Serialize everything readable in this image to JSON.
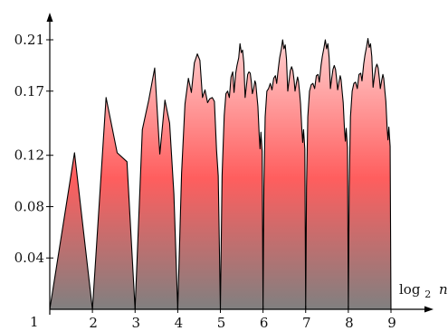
{
  "chart_data": {
    "type": "area",
    "xlabel": "log",
    "xlabel_sub": "2",
    "xlabel_var": "n",
    "origin_label": "1",
    "x_ticks": [
      2,
      3,
      4,
      5,
      6,
      7,
      8,
      9
    ],
    "y_ticks": [
      0.04,
      0.08,
      0.12,
      0.17,
      0.21
    ],
    "y_tick_labels": [
      "0.04",
      "0.08",
      "0.12",
      "0.17",
      "0.21"
    ],
    "x_tick_labels": [
      "2",
      "3",
      "4",
      "5",
      "6",
      "7",
      "8",
      "9"
    ],
    "xlim": [
      1,
      9.45
    ],
    "ylim": [
      0,
      0.225
    ],
    "grid": false,
    "legend": "none",
    "colors": {
      "top": "#ffd3d3",
      "middle": "#ff5e5e",
      "bottom": "#808080",
      "outline": "#000000"
    },
    "points": [
      [
        1.0,
        0.0
      ],
      [
        1.58,
        0.122
      ],
      [
        2.0,
        0.0
      ],
      [
        2.32,
        0.165
      ],
      [
        2.58,
        0.122
      ],
      [
        2.81,
        0.115
      ],
      [
        3.0,
        0.0
      ],
      [
        3.17,
        0.14
      ],
      [
        3.32,
        0.163
      ],
      [
        3.46,
        0.188
      ],
      [
        3.58,
        0.121
      ],
      [
        3.7,
        0.163
      ],
      [
        3.81,
        0.145
      ],
      [
        3.91,
        0.09
      ],
      [
        4.0,
        0.0
      ],
      [
        4.09,
        0.106
      ],
      [
        4.17,
        0.16
      ],
      [
        4.25,
        0.18
      ],
      [
        4.32,
        0.169
      ],
      [
        4.39,
        0.192
      ],
      [
        4.46,
        0.199
      ],
      [
        4.52,
        0.194
      ],
      [
        4.58,
        0.165
      ],
      [
        4.64,
        0.171
      ],
      [
        4.7,
        0.161
      ],
      [
        4.75,
        0.164
      ],
      [
        4.81,
        0.165
      ],
      [
        4.86,
        0.162
      ],
      [
        4.91,
        0.124
      ],
      [
        4.95,
        0.104
      ],
      [
        5.0,
        0.0
      ],
      [
        5.04,
        0.104
      ],
      [
        5.09,
        0.151
      ],
      [
        5.13,
        0.168
      ],
      [
        5.17,
        0.17
      ],
      [
        5.21,
        0.165
      ],
      [
        5.25,
        0.181
      ],
      [
        5.29,
        0.185
      ],
      [
        5.32,
        0.169
      ],
      [
        5.36,
        0.184
      ],
      [
        5.39,
        0.19
      ],
      [
        5.43,
        0.196
      ],
      [
        5.46,
        0.207
      ],
      [
        5.49,
        0.2
      ],
      [
        5.52,
        0.202
      ],
      [
        5.55,
        0.192
      ],
      [
        5.58,
        0.165
      ],
      [
        5.61,
        0.174
      ],
      [
        5.64,
        0.183
      ],
      [
        5.67,
        0.185
      ],
      [
        5.7,
        0.184
      ],
      [
        5.73,
        0.176
      ],
      [
        5.75,
        0.168
      ],
      [
        5.78,
        0.172
      ],
      [
        5.81,
        0.178
      ],
      [
        5.83,
        0.176
      ],
      [
        5.86,
        0.165
      ],
      [
        5.88,
        0.158
      ],
      [
        5.91,
        0.136
      ],
      [
        5.93,
        0.125
      ],
      [
        5.95,
        0.138
      ],
      [
        5.98,
        0.123
      ],
      [
        6.0,
        0.0
      ],
      [
        6.02,
        0.095
      ],
      [
        6.05,
        0.15
      ],
      [
        6.09,
        0.17
      ],
      [
        6.13,
        0.172
      ],
      [
        6.17,
        0.176
      ],
      [
        6.21,
        0.171
      ],
      [
        6.25,
        0.18
      ],
      [
        6.29,
        0.182
      ],
      [
        6.32,
        0.176
      ],
      [
        6.36,
        0.188
      ],
      [
        6.39,
        0.196
      ],
      [
        6.43,
        0.203
      ],
      [
        6.46,
        0.21
      ],
      [
        6.49,
        0.203
      ],
      [
        6.52,
        0.206
      ],
      [
        6.55,
        0.195
      ],
      [
        6.58,
        0.17
      ],
      [
        6.61,
        0.178
      ],
      [
        6.64,
        0.186
      ],
      [
        6.67,
        0.189
      ],
      [
        6.7,
        0.186
      ],
      [
        6.73,
        0.178
      ],
      [
        6.75,
        0.17
      ],
      [
        6.78,
        0.176
      ],
      [
        6.81,
        0.181
      ],
      [
        6.83,
        0.178
      ],
      [
        6.86,
        0.168
      ],
      [
        6.88,
        0.16
      ],
      [
        6.91,
        0.14
      ],
      [
        6.93,
        0.13
      ],
      [
        6.95,
        0.14
      ],
      [
        6.98,
        0.125
      ],
      [
        7.0,
        0.0
      ],
      [
        7.02,
        0.095
      ],
      [
        7.05,
        0.15
      ],
      [
        7.09,
        0.17
      ],
      [
        7.13,
        0.175
      ],
      [
        7.17,
        0.176
      ],
      [
        7.21,
        0.172
      ],
      [
        7.25,
        0.182
      ],
      [
        7.29,
        0.183
      ],
      [
        7.32,
        0.177
      ],
      [
        7.36,
        0.19
      ],
      [
        7.39,
        0.197
      ],
      [
        7.43,
        0.204
      ],
      [
        7.46,
        0.21
      ],
      [
        7.49,
        0.203
      ],
      [
        7.52,
        0.207
      ],
      [
        7.55,
        0.196
      ],
      [
        7.58,
        0.172
      ],
      [
        7.61,
        0.18
      ],
      [
        7.64,
        0.187
      ],
      [
        7.67,
        0.19
      ],
      [
        7.7,
        0.187
      ],
      [
        7.73,
        0.178
      ],
      [
        7.75,
        0.171
      ],
      [
        7.78,
        0.177
      ],
      [
        7.81,
        0.182
      ],
      [
        7.83,
        0.179
      ],
      [
        7.86,
        0.168
      ],
      [
        7.88,
        0.161
      ],
      [
        7.91,
        0.14
      ],
      [
        7.93,
        0.131
      ],
      [
        7.95,
        0.141
      ],
      [
        7.98,
        0.126
      ],
      [
        8.0,
        0.0
      ],
      [
        8.02,
        0.095
      ],
      [
        8.05,
        0.15
      ],
      [
        8.09,
        0.17
      ],
      [
        8.13,
        0.176
      ],
      [
        8.17,
        0.177
      ],
      [
        8.21,
        0.172
      ],
      [
        8.25,
        0.183
      ],
      [
        8.29,
        0.184
      ],
      [
        8.32,
        0.178
      ],
      [
        8.36,
        0.191
      ],
      [
        8.39,
        0.198
      ],
      [
        8.43,
        0.205
      ],
      [
        8.46,
        0.211
      ],
      [
        8.49,
        0.204
      ],
      [
        8.52,
        0.207
      ],
      [
        8.55,
        0.197
      ],
      [
        8.58,
        0.173
      ],
      [
        8.61,
        0.181
      ],
      [
        8.64,
        0.188
      ],
      [
        8.67,
        0.191
      ],
      [
        8.7,
        0.188
      ],
      [
        8.73,
        0.179
      ],
      [
        8.75,
        0.172
      ],
      [
        8.78,
        0.178
      ],
      [
        8.81,
        0.183
      ],
      [
        8.83,
        0.18
      ],
      [
        8.86,
        0.169
      ],
      [
        8.88,
        0.162
      ],
      [
        8.91,
        0.141
      ],
      [
        8.93,
        0.132
      ],
      [
        8.95,
        0.142
      ],
      [
        8.98,
        0.127
      ],
      [
        9.0,
        0.0
      ]
    ]
  }
}
